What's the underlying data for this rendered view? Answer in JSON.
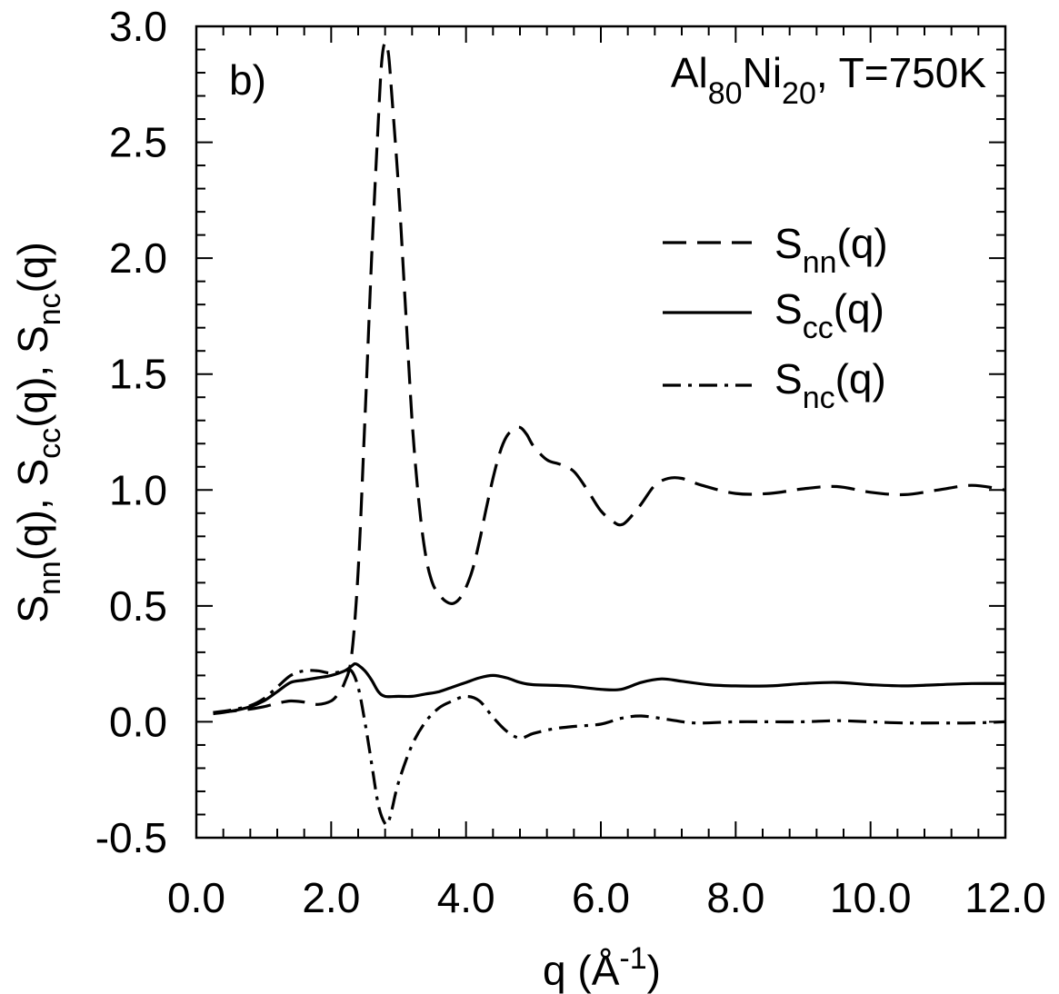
{
  "chart_data": {
    "type": "line",
    "panel_label": "b)",
    "annotation": {
      "base1": "Al",
      "sub1": "80",
      "base2": "Ni",
      "sub2": "20",
      "tail": ", T=750K"
    },
    "xlabel": {
      "base": "q (Å",
      "sup": "-1",
      "tail": ")"
    },
    "ylabel": [
      {
        "base": "S",
        "sub": "nn",
        "tail": "(q), "
      },
      {
        "base": "S",
        "sub": "cc",
        "tail": "(q), "
      },
      {
        "base": "S",
        "sub": "nc",
        "tail": "(q)"
      }
    ],
    "xlim": [
      0.0,
      12.0
    ],
    "ylim": [
      -0.5,
      3.0
    ],
    "xticks": [
      "0.0",
      "2.0",
      "4.0",
      "6.0",
      "8.0",
      "10.0",
      "12.0"
    ],
    "yticks": [
      "-0.5",
      "0.0",
      "0.5",
      "1.0",
      "1.5",
      "2.0",
      "2.5",
      "3.0"
    ],
    "legend_position": "upper-right",
    "series": [
      {
        "name": "S_nn(q)",
        "legend": {
          "base": "S",
          "sub": "nn",
          "tail": "(q)"
        },
        "style": "dashed",
        "points": [
          [
            0.25,
            0.04
          ],
          [
            0.5,
            0.045
          ],
          [
            0.8,
            0.055
          ],
          [
            1.0,
            0.065
          ],
          [
            1.2,
            0.08
          ],
          [
            1.4,
            0.09
          ],
          [
            1.6,
            0.085
          ],
          [
            1.8,
            0.075
          ],
          [
            2.0,
            0.09
          ],
          [
            2.1,
            0.12
          ],
          [
            2.2,
            0.17
          ],
          [
            2.3,
            0.28
          ],
          [
            2.4,
            0.65
          ],
          [
            2.5,
            1.3
          ],
          [
            2.6,
            2.0
          ],
          [
            2.7,
            2.6
          ],
          [
            2.75,
            2.85
          ],
          [
            2.8,
            2.93
          ],
          [
            2.85,
            2.88
          ],
          [
            2.9,
            2.7
          ],
          [
            3.0,
            2.3
          ],
          [
            3.1,
            1.8
          ],
          [
            3.2,
            1.3
          ],
          [
            3.3,
            0.95
          ],
          [
            3.4,
            0.72
          ],
          [
            3.5,
            0.6
          ],
          [
            3.6,
            0.55
          ],
          [
            3.7,
            0.52
          ],
          [
            3.8,
            0.51
          ],
          [
            3.9,
            0.53
          ],
          [
            4.0,
            0.58
          ],
          [
            4.1,
            0.66
          ],
          [
            4.2,
            0.78
          ],
          [
            4.3,
            0.92
          ],
          [
            4.4,
            1.05
          ],
          [
            4.5,
            1.16
          ],
          [
            4.6,
            1.23
          ],
          [
            4.7,
            1.26
          ],
          [
            4.8,
            1.27
          ],
          [
            4.9,
            1.24
          ],
          [
            5.0,
            1.19
          ],
          [
            5.2,
            1.13
          ],
          [
            5.4,
            1.11
          ],
          [
            5.6,
            1.08
          ],
          [
            5.8,
            1.0
          ],
          [
            6.0,
            0.91
          ],
          [
            6.2,
            0.86
          ],
          [
            6.3,
            0.85
          ],
          [
            6.4,
            0.87
          ],
          [
            6.6,
            0.94
          ],
          [
            6.8,
            1.02
          ],
          [
            7.0,
            1.05
          ],
          [
            7.2,
            1.05
          ],
          [
            7.5,
            1.02
          ],
          [
            8.0,
            0.985
          ],
          [
            8.5,
            0.985
          ],
          [
            9.0,
            1.005
          ],
          [
            9.5,
            1.015
          ],
          [
            10.0,
            0.99
          ],
          [
            10.5,
            0.98
          ],
          [
            11.0,
            1.0
          ],
          [
            11.5,
            1.02
          ],
          [
            12.0,
            1.0
          ]
        ]
      },
      {
        "name": "S_cc(q)",
        "legend": {
          "base": "S",
          "sub": "cc",
          "tail": "(q)"
        },
        "style": "solid",
        "points": [
          [
            0.25,
            0.035
          ],
          [
            0.5,
            0.045
          ],
          [
            0.8,
            0.065
          ],
          [
            1.0,
            0.09
          ],
          [
            1.2,
            0.13
          ],
          [
            1.4,
            0.17
          ],
          [
            1.6,
            0.18
          ],
          [
            1.8,
            0.19
          ],
          [
            2.0,
            0.2
          ],
          [
            2.2,
            0.22
          ],
          [
            2.3,
            0.24
          ],
          [
            2.35,
            0.25
          ],
          [
            2.4,
            0.245
          ],
          [
            2.5,
            0.22
          ],
          [
            2.6,
            0.18
          ],
          [
            2.7,
            0.13
          ],
          [
            2.8,
            0.11
          ],
          [
            3.0,
            0.11
          ],
          [
            3.2,
            0.11
          ],
          [
            3.4,
            0.12
          ],
          [
            3.6,
            0.13
          ],
          [
            3.8,
            0.15
          ],
          [
            4.0,
            0.17
          ],
          [
            4.2,
            0.19
          ],
          [
            4.4,
            0.2
          ],
          [
            4.6,
            0.19
          ],
          [
            4.8,
            0.17
          ],
          [
            5.0,
            0.16
          ],
          [
            5.5,
            0.155
          ],
          [
            6.0,
            0.14
          ],
          [
            6.3,
            0.14
          ],
          [
            6.6,
            0.17
          ],
          [
            6.9,
            0.185
          ],
          [
            7.2,
            0.175
          ],
          [
            7.6,
            0.16
          ],
          [
            8.0,
            0.155
          ],
          [
            8.5,
            0.155
          ],
          [
            9.0,
            0.165
          ],
          [
            9.5,
            0.17
          ],
          [
            10.0,
            0.16
          ],
          [
            10.5,
            0.155
          ],
          [
            11.0,
            0.16
          ],
          [
            11.5,
            0.165
          ],
          [
            12.0,
            0.165
          ]
        ]
      },
      {
        "name": "S_nc(q)",
        "legend": {
          "base": "S",
          "sub": "nc",
          "tail": "(q)"
        },
        "style": "dashdot",
        "points": [
          [
            0.25,
            0.04
          ],
          [
            0.5,
            0.05
          ],
          [
            0.8,
            0.07
          ],
          [
            1.0,
            0.1
          ],
          [
            1.2,
            0.15
          ],
          [
            1.4,
            0.2
          ],
          [
            1.6,
            0.22
          ],
          [
            1.8,
            0.22
          ],
          [
            2.0,
            0.21
          ],
          [
            2.2,
            0.22
          ],
          [
            2.3,
            0.22
          ],
          [
            2.4,
            0.15
          ],
          [
            2.5,
            0.0
          ],
          [
            2.6,
            -0.18
          ],
          [
            2.7,
            -0.36
          ],
          [
            2.8,
            -0.44
          ],
          [
            2.85,
            -0.43
          ],
          [
            2.9,
            -0.38
          ],
          [
            3.0,
            -0.26
          ],
          [
            3.2,
            -0.1
          ],
          [
            3.4,
            0.0
          ],
          [
            3.6,
            0.06
          ],
          [
            3.8,
            0.09
          ],
          [
            4.0,
            0.11
          ],
          [
            4.2,
            0.09
          ],
          [
            4.4,
            0.02
          ],
          [
            4.6,
            -0.04
          ],
          [
            4.8,
            -0.07
          ],
          [
            5.0,
            -0.05
          ],
          [
            5.3,
            -0.03
          ],
          [
            5.6,
            -0.02
          ],
          [
            6.0,
            -0.01
          ],
          [
            6.3,
            0.015
          ],
          [
            6.6,
            0.025
          ],
          [
            7.0,
            0.01
          ],
          [
            7.4,
            -0.005
          ],
          [
            8.0,
            0.0
          ],
          [
            8.5,
            0.0
          ],
          [
            9.0,
            0.0
          ],
          [
            9.5,
            0.005
          ],
          [
            10.0,
            0.0
          ],
          [
            10.5,
            -0.005
          ],
          [
            11.0,
            -0.005
          ],
          [
            11.5,
            -0.005
          ],
          [
            12.0,
            0.0
          ]
        ]
      }
    ]
  }
}
